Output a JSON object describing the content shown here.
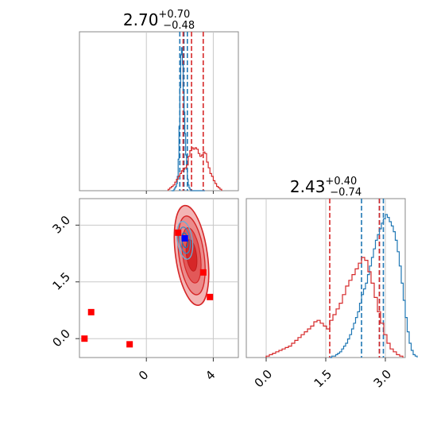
{
  "chart_data": [
    {
      "panel": "marginal-param-1",
      "type": "histogram",
      "title": {
        "value": "2.70",
        "plus": "+0.70",
        "minus": "−0.48"
      },
      "xlim": [
        -4,
        5.5
      ],
      "grid": true,
      "series": [
        {
          "name": "",
          "color": "#1f77b4",
          "bin_start": 1.5,
          "bin_width": 0.05,
          "counts": [
            0,
            0,
            0,
            1,
            2,
            3,
            5,
            10,
            22,
            45,
            72,
            95,
            100,
            88,
            70,
            55,
            40,
            25,
            15,
            8,
            4,
            2,
            1,
            0,
            0,
            0,
            0,
            0,
            0,
            0,
            0,
            0,
            0,
            0,
            0,
            0,
            0,
            0,
            0,
            0
          ]
        },
        {
          "name": "",
          "color": "#d62728",
          "bin_start": 1.3,
          "bin_width": 0.1,
          "counts": [
            1,
            2,
            3,
            4,
            6,
            8,
            10,
            12,
            14,
            15,
            16,
            18,
            24,
            28,
            30,
            29,
            30,
            29,
            26,
            24,
            25,
            27,
            26,
            20,
            16,
            12,
            10,
            7,
            5,
            3,
            2,
            1
          ]
        }
      ],
      "quantile_lines": [
        {
          "color": "#1f77b4",
          "x": [
            2.0,
            2.25,
            2.45
          ]
        },
        {
          "color": "#d62728",
          "x": [
            2.2,
            2.7,
            3.4
          ]
        }
      ]
    },
    {
      "panel": "marginal-param-2",
      "type": "histogram",
      "title": {
        "value": "2.43",
        "plus": "+0.40",
        "minus": "−0.74"
      },
      "xlim": [
        -0.5,
        3.5
      ],
      "xticks": [
        "0.0",
        "1.5",
        "3.0"
      ],
      "grid": true,
      "series": [
        {
          "name": "",
          "color": "#1f77b4",
          "bin_start": 1.6,
          "bin_width": 0.05,
          "counts": [
            0,
            1,
            1,
            2,
            3,
            4,
            6,
            8,
            10,
            13,
            16,
            20,
            24,
            28,
            32,
            38,
            44,
            48,
            52,
            58,
            64,
            70,
            76,
            82,
            86,
            90,
            94,
            97,
            100,
            98,
            95,
            92,
            88,
            82,
            74,
            64,
            52,
            40,
            28,
            18,
            10,
            5,
            2,
            1
          ]
        },
        {
          "name": "",
          "color": "#d62728",
          "bin_start": 0.0,
          "bin_width": 0.08,
          "counts": [
            1,
            2,
            3,
            4,
            5,
            6,
            7,
            8,
            10,
            12,
            14,
            16,
            18,
            20,
            22,
            25,
            26,
            24,
            22,
            20,
            26,
            30,
            34,
            38,
            44,
            50,
            54,
            58,
            62,
            66,
            70,
            68,
            60,
            52,
            42,
            32,
            24,
            16,
            10,
            6,
            4,
            2,
            1
          ]
        }
      ],
      "quantile_lines": [
        {
          "color": "#1f77b4",
          "x": [
            2.4,
            2.85,
            2.95
          ]
        },
        {
          "color": "#d62728",
          "x": [
            1.6,
            2.85
          ]
        }
      ]
    },
    {
      "panel": "joint-2d",
      "type": "contour",
      "xlim": [
        -4,
        5.5
      ],
      "ylim": [
        -0.5,
        3.7
      ],
      "xticks": [
        "0",
        "4"
      ],
      "yticks": [
        "0.0",
        "1.5",
        "3.0"
      ],
      "grid": true,
      "red_blob": {
        "center": [
          2.7,
          2.2
        ],
        "spread": [
          0.5,
          0.7
        ]
      },
      "blue_blob": {
        "center": [
          2.3,
          2.6
        ],
        "spread": [
          0.25,
          0.28
        ]
      },
      "markers": [
        {
          "color": "#ff0000",
          "x": 1.9,
          "y": 2.8
        },
        {
          "color": "#ff0000",
          "x": 3.4,
          "y": 1.75
        },
        {
          "color": "#ff0000",
          "x": 3.8,
          "y": 1.1
        },
        {
          "color": "#ff0000",
          "x": -3.3,
          "y": 0.7
        },
        {
          "color": "#ff0000",
          "x": -3.7,
          "y": 0.0
        },
        {
          "color": "#ff0000",
          "x": -1.0,
          "y": -0.15
        },
        {
          "color": "#0000ff",
          "x": 2.3,
          "y": 2.65
        }
      ]
    }
  ]
}
